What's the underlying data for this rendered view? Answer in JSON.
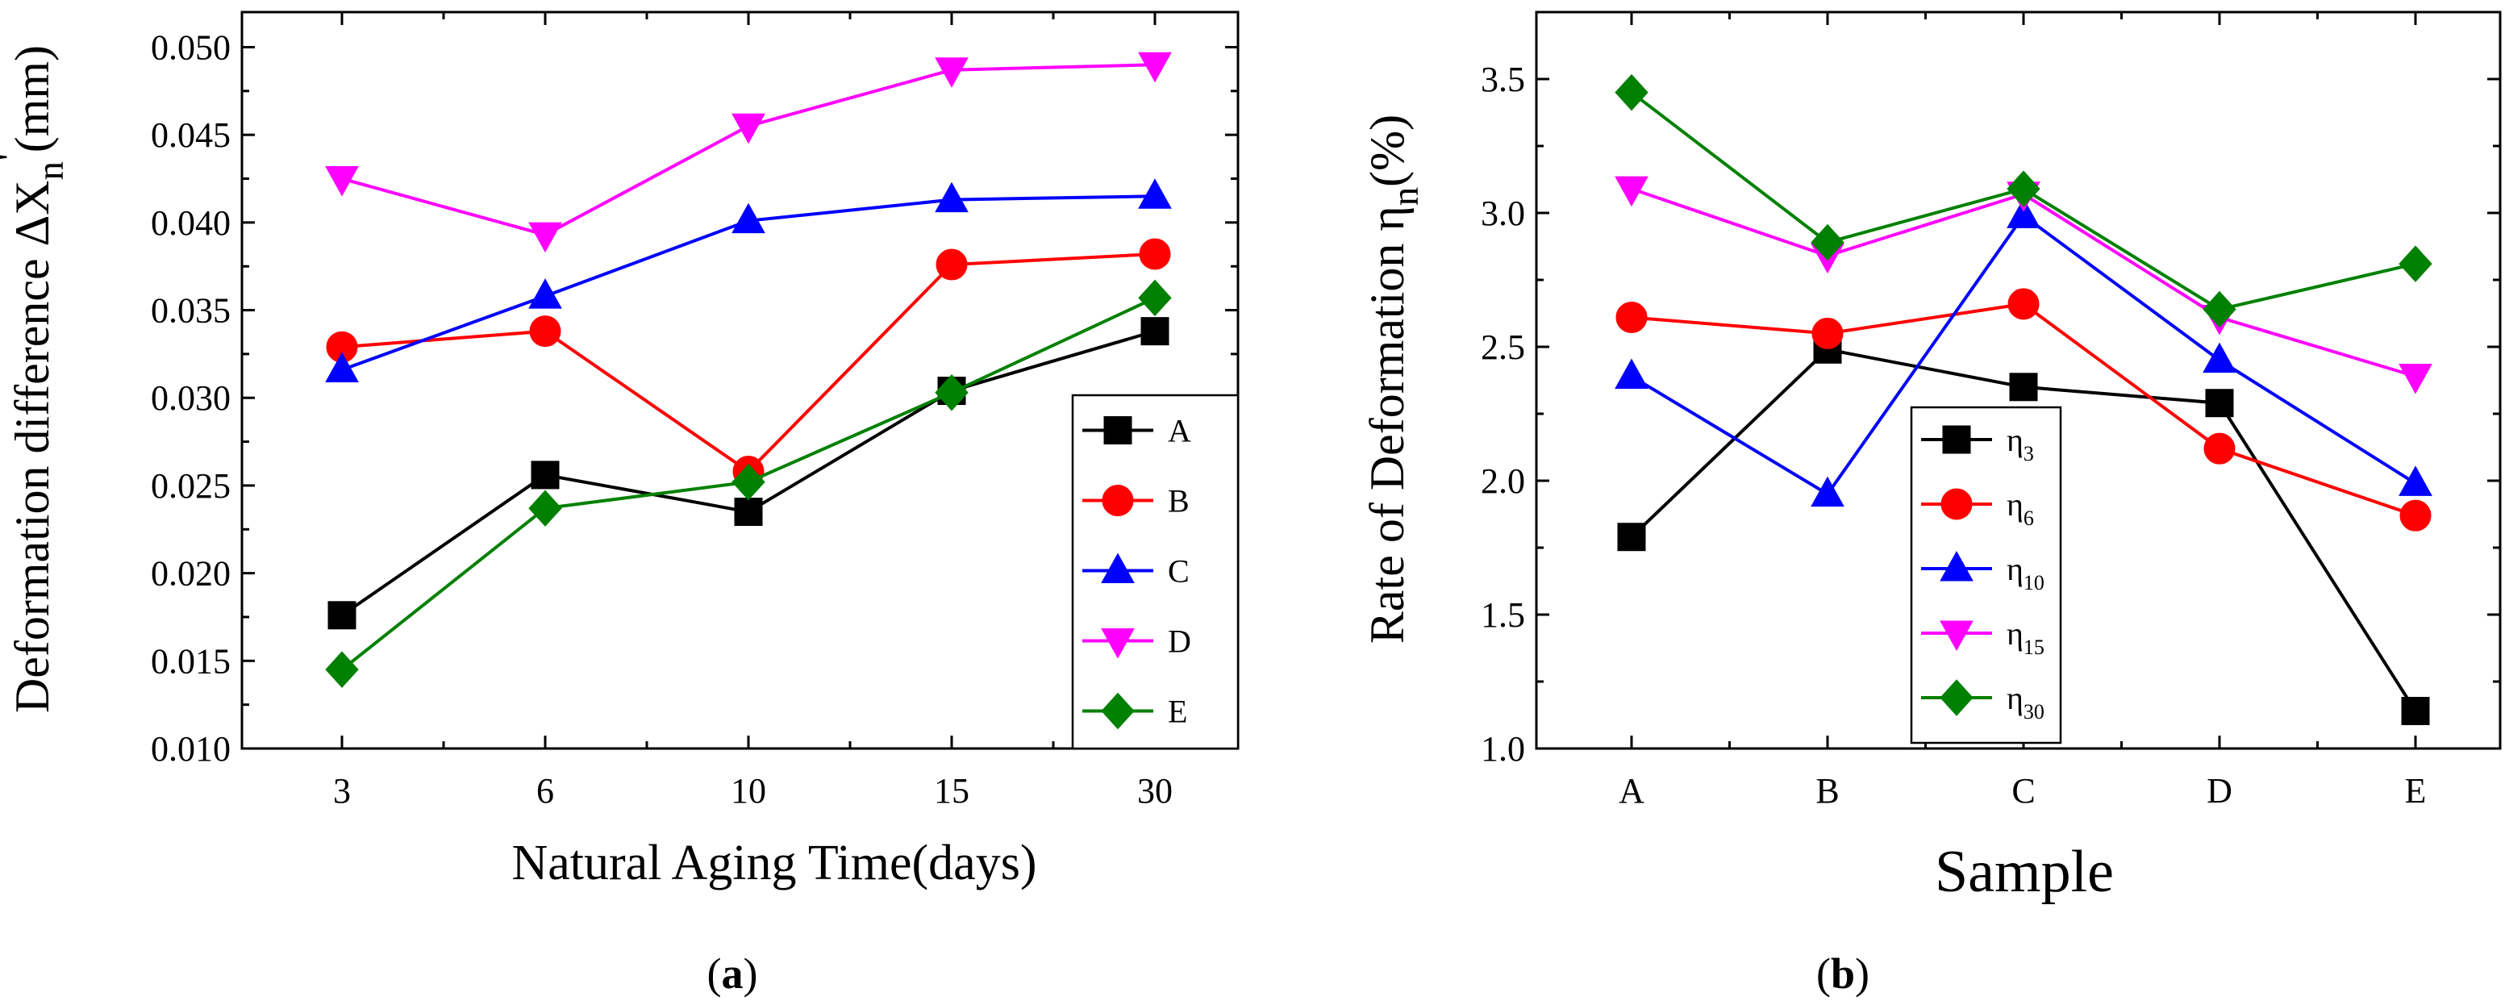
{
  "chart_data": [
    {
      "id": "a",
      "type": "line",
      "panel_label": "a",
      "xlabel": "Natural Aging Time(days)",
      "ylabel": {
        "main": "Deformation difference  ΔX",
        "sub": "n",
        "prime": "'",
        "unit": "(mm)"
      },
      "categories": [
        "3",
        "6",
        "10",
        "15",
        "30"
      ],
      "ylim": [
        0.01,
        0.052
      ],
      "yticks": [
        0.01,
        0.015,
        0.02,
        0.025,
        0.03,
        0.035,
        0.04,
        0.045,
        0.05
      ],
      "ytick_labels": [
        "0.010",
        "0.015",
        "0.020",
        "0.025",
        "0.030",
        "0.035",
        "0.040",
        "0.045",
        "0.050"
      ],
      "grid": false,
      "legend_position": "bottom-right",
      "series": [
        {
          "name": "A",
          "label": "A",
          "color": "#000000",
          "marker": "square",
          "values": [
            0.0176,
            0.0256,
            0.0235,
            0.0304,
            0.0338
          ]
        },
        {
          "name": "B",
          "label": "B",
          "color": "#ff0000",
          "marker": "circle",
          "values": [
            0.0329,
            0.0338,
            0.0258,
            0.0376,
            0.0382
          ]
        },
        {
          "name": "C",
          "label": "C",
          "color": "#0000ff",
          "marker": "triangle",
          "values": [
            0.0316,
            0.0358,
            0.0401,
            0.0413,
            0.0415
          ]
        },
        {
          "name": "D",
          "label": "D",
          "color": "#ff00ff",
          "marker": "tri-down",
          "values": [
            0.0425,
            0.0393,
            0.0455,
            0.0487,
            0.049
          ]
        },
        {
          "name": "E",
          "label": "E",
          "color": "#008000",
          "marker": "diamond",
          "values": [
            0.0145,
            0.0237,
            0.0252,
            0.0303,
            0.0357
          ]
        }
      ]
    },
    {
      "id": "b",
      "type": "line",
      "panel_label": "b",
      "xlabel": "Sample",
      "ylabel": {
        "main": "Rate of Deformation η",
        "sub": "n",
        "prime": "",
        "unit": "(%)"
      },
      "categories": [
        "A",
        "B",
        "C",
        "D",
        "E"
      ],
      "ylim": [
        1.0,
        3.75
      ],
      "yticks": [
        1.0,
        1.5,
        2.0,
        2.5,
        3.0,
        3.5
      ],
      "ytick_labels": [
        "1.0",
        "1.5",
        "2.0",
        "2.5",
        "3.0",
        "3.5"
      ],
      "grid": false,
      "legend_position": "bottom-left",
      "series": [
        {
          "name": "η3",
          "label": "η",
          "sub": "3",
          "color": "#000000",
          "marker": "square",
          "values": [
            1.79,
            2.49,
            2.35,
            2.29,
            1.14
          ]
        },
        {
          "name": "η6",
          "label": "η",
          "sub": "6",
          "color": "#ff0000",
          "marker": "circle",
          "values": [
            2.61,
            2.55,
            2.66,
            2.12,
            1.87
          ]
        },
        {
          "name": "η10",
          "label": "η",
          "sub": "10",
          "color": "#0000ff",
          "marker": "triangle",
          "values": [
            2.39,
            1.95,
            2.99,
            2.45,
            1.99
          ]
        },
        {
          "name": "η15",
          "label": "η",
          "sub": "15",
          "color": "#ff00ff",
          "marker": "tri-down",
          "values": [
            3.09,
            2.84,
            3.07,
            2.61,
            2.39
          ]
        },
        {
          "name": "η30",
          "label": "η",
          "sub": "30",
          "color": "#008000",
          "marker": "diamond",
          "values": [
            3.45,
            2.89,
            3.09,
            2.64,
            2.81
          ]
        }
      ]
    }
  ]
}
